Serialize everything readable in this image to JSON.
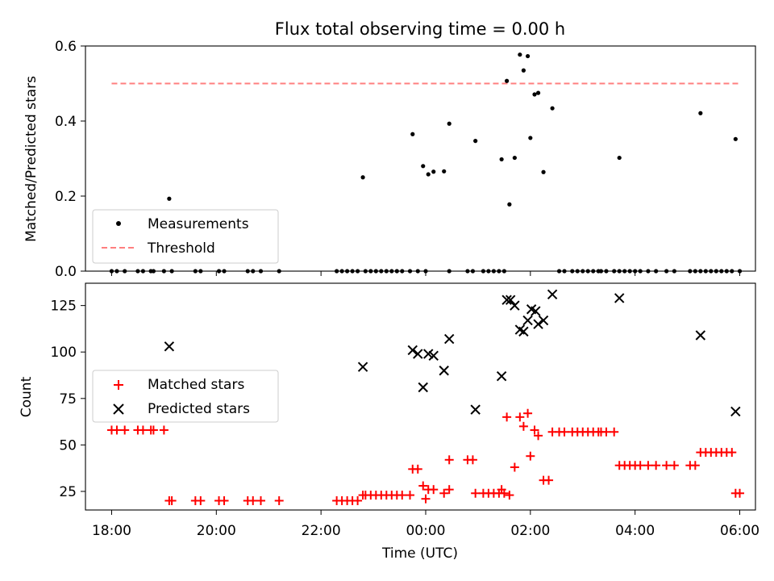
{
  "chart_data": [
    {
      "type": "scatter",
      "title": "Flux total observing time = 0.00 h",
      "xlabel": "",
      "ylabel": "Matched/Predicted stars",
      "xlim": [
        -0.5,
        12.3
      ],
      "ylim": [
        0,
        0.6
      ],
      "yticks": [
        0,
        0.2,
        0.4,
        0.6
      ],
      "ytick_labels": [
        "0.0",
        "0.2",
        "0.4",
        "0.6"
      ],
      "legend": {
        "placement": "lower-left",
        "entries": [
          "Measurements",
          "Threshold"
        ]
      },
      "threshold": {
        "name": "Threshold",
        "y": 0.5,
        "x_start": 0.0,
        "x_end": 12.0,
        "color": "#ff7f7f"
      },
      "series": [
        {
          "name": "Measurements",
          "color": "#000000",
          "points": [
            [
              1.1,
              0.193
            ],
            [
              4.8,
              0.25
            ],
            [
              5.75,
              0.365
            ],
            [
              5.95,
              0.28
            ],
            [
              6.05,
              0.258
            ],
            [
              6.15,
              0.265
            ],
            [
              6.35,
              0.266
            ],
            [
              6.45,
              0.393
            ],
            [
              6.95,
              0.347
            ],
            [
              7.45,
              0.298
            ],
            [
              7.55,
              0.507
            ],
            [
              7.6,
              0.178
            ],
            [
              7.7,
              0.302
            ],
            [
              7.8,
              0.577
            ],
            [
              7.87,
              0.535
            ],
            [
              7.95,
              0.573
            ],
            [
              8.0,
              0.355
            ],
            [
              8.08,
              0.471
            ],
            [
              8.15,
              0.475
            ],
            [
              8.25,
              0.264
            ],
            [
              8.42,
              0.434
            ],
            [
              9.7,
              0.302
            ],
            [
              11.25,
              0.421
            ],
            [
              11.92,
              0.352
            ],
            [
              0.0,
              0
            ],
            [
              0.1,
              0
            ],
            [
              0.25,
              0
            ],
            [
              0.5,
              0
            ],
            [
              0.6,
              0
            ],
            [
              0.75,
              0
            ],
            [
              0.8,
              0
            ],
            [
              1.0,
              0
            ],
            [
              1.15,
              0
            ],
            [
              1.6,
              0
            ],
            [
              1.7,
              0
            ],
            [
              2.05,
              0
            ],
            [
              2.15,
              0
            ],
            [
              2.6,
              0
            ],
            [
              2.7,
              0
            ],
            [
              2.85,
              0
            ],
            [
              3.2,
              0
            ],
            [
              4.3,
              0
            ],
            [
              4.4,
              0
            ],
            [
              4.5,
              0
            ],
            [
              4.6,
              0
            ],
            [
              4.7,
              0
            ],
            [
              4.85,
              0
            ],
            [
              4.95,
              0
            ],
            [
              5.05,
              0
            ],
            [
              5.15,
              0
            ],
            [
              5.25,
              0
            ],
            [
              5.35,
              0
            ],
            [
              5.45,
              0
            ],
            [
              5.55,
              0
            ],
            [
              5.7,
              0
            ],
            [
              5.85,
              0
            ],
            [
              6.0,
              0
            ],
            [
              6.45,
              0
            ],
            [
              6.8,
              0
            ],
            [
              6.9,
              0
            ],
            [
              7.1,
              0
            ],
            [
              7.2,
              0
            ],
            [
              7.3,
              0
            ],
            [
              7.4,
              0
            ],
            [
              7.5,
              0
            ],
            [
              8.55,
              0
            ],
            [
              8.65,
              0
            ],
            [
              8.8,
              0
            ],
            [
              8.9,
              0
            ],
            [
              9.0,
              0
            ],
            [
              9.1,
              0
            ],
            [
              9.2,
              0
            ],
            [
              9.3,
              0
            ],
            [
              9.35,
              0
            ],
            [
              9.45,
              0
            ],
            [
              9.6,
              0
            ],
            [
              9.7,
              0
            ],
            [
              9.8,
              0
            ],
            [
              9.9,
              0
            ],
            [
              10.0,
              0
            ],
            [
              10.1,
              0
            ],
            [
              10.25,
              0
            ],
            [
              10.4,
              0
            ],
            [
              10.6,
              0
            ],
            [
              10.75,
              0
            ],
            [
              11.05,
              0
            ],
            [
              11.15,
              0
            ],
            [
              11.25,
              0
            ],
            [
              11.35,
              0
            ],
            [
              11.45,
              0
            ],
            [
              11.55,
              0
            ],
            [
              11.65,
              0
            ],
            [
              11.75,
              0
            ],
            [
              11.85,
              0
            ],
            [
              12.0,
              0
            ]
          ]
        }
      ]
    },
    {
      "type": "scatter",
      "title": "",
      "xlabel": "Time (UTC)",
      "ylabel": "Count",
      "xlim": [
        -0.5,
        12.3
      ],
      "ylim": [
        15,
        137
      ],
      "yticks": [
        25,
        50,
        75,
        100,
        125
      ],
      "ytick_labels": [
        "25",
        "50",
        "75",
        "100",
        "125"
      ],
      "xticks": [
        0,
        2,
        4,
        6,
        8,
        10,
        12
      ],
      "xtick_labels": [
        "18:00",
        "20:00",
        "22:00",
        "00:00",
        "02:00",
        "04:00",
        "06:00"
      ],
      "legend": {
        "placement": "center-left",
        "entries": [
          "Matched stars",
          "Predicted stars"
        ]
      },
      "series": [
        {
          "name": "Matched stars",
          "marker": "plus",
          "color": "#ff0000",
          "points": [
            [
              0.0,
              58
            ],
            [
              0.1,
              58
            ],
            [
              0.25,
              58
            ],
            [
              0.5,
              58
            ],
            [
              0.6,
              58
            ],
            [
              0.75,
              58
            ],
            [
              0.8,
              58
            ],
            [
              1.0,
              58
            ],
            [
              1.1,
              20
            ],
            [
              1.15,
              20
            ],
            [
              1.6,
              20
            ],
            [
              1.7,
              20
            ],
            [
              2.05,
              20
            ],
            [
              2.15,
              20
            ],
            [
              2.6,
              20
            ],
            [
              2.7,
              20
            ],
            [
              2.85,
              20
            ],
            [
              3.2,
              20
            ],
            [
              4.3,
              20
            ],
            [
              4.4,
              20
            ],
            [
              4.5,
              20
            ],
            [
              4.6,
              20
            ],
            [
              4.7,
              20
            ],
            [
              4.8,
              23
            ],
            [
              4.85,
              23
            ],
            [
              4.95,
              23
            ],
            [
              5.05,
              23
            ],
            [
              5.15,
              23
            ],
            [
              5.25,
              23
            ],
            [
              5.35,
              23
            ],
            [
              5.45,
              23
            ],
            [
              5.55,
              23
            ],
            [
              5.7,
              23
            ],
            [
              5.75,
              37
            ],
            [
              5.85,
              37
            ],
            [
              5.95,
              28
            ],
            [
              6.0,
              21
            ],
            [
              6.05,
              26
            ],
            [
              6.15,
              26
            ],
            [
              6.35,
              24
            ],
            [
              6.45,
              42
            ],
            [
              6.45,
              26
            ],
            [
              6.8,
              42
            ],
            [
              6.9,
              42
            ],
            [
              6.95,
              24
            ],
            [
              7.1,
              24
            ],
            [
              7.2,
              24
            ],
            [
              7.3,
              24
            ],
            [
              7.4,
              24
            ],
            [
              7.45,
              26
            ],
            [
              7.5,
              24
            ],
            [
              7.55,
              65
            ],
            [
              7.6,
              23
            ],
            [
              7.7,
              38
            ],
            [
              7.8,
              65
            ],
            [
              7.87,
              60
            ],
            [
              7.95,
              67
            ],
            [
              8.0,
              44
            ],
            [
              8.08,
              58
            ],
            [
              8.15,
              55
            ],
            [
              8.25,
              31
            ],
            [
              8.35,
              31
            ],
            [
              8.42,
              57
            ],
            [
              8.55,
              57
            ],
            [
              8.65,
              57
            ],
            [
              8.8,
              57
            ],
            [
              8.9,
              57
            ],
            [
              9.0,
              57
            ],
            [
              9.1,
              57
            ],
            [
              9.2,
              57
            ],
            [
              9.3,
              57
            ],
            [
              9.35,
              57
            ],
            [
              9.45,
              57
            ],
            [
              9.6,
              57
            ],
            [
              9.7,
              39
            ],
            [
              9.8,
              39
            ],
            [
              9.9,
              39
            ],
            [
              10.0,
              39
            ],
            [
              10.1,
              39
            ],
            [
              10.25,
              39
            ],
            [
              10.4,
              39
            ],
            [
              10.6,
              39
            ],
            [
              10.75,
              39
            ],
            [
              11.05,
              39
            ],
            [
              11.15,
              39
            ],
            [
              11.25,
              46
            ],
            [
              11.35,
              46
            ],
            [
              11.45,
              46
            ],
            [
              11.55,
              46
            ],
            [
              11.65,
              46
            ],
            [
              11.75,
              46
            ],
            [
              11.85,
              46
            ],
            [
              11.92,
              24
            ],
            [
              12.0,
              24
            ]
          ]
        },
        {
          "name": "Predicted stars",
          "marker": "x",
          "color": "#000000",
          "points": [
            [
              1.1,
              103
            ],
            [
              4.8,
              92
            ],
            [
              5.75,
              101
            ],
            [
              5.85,
              99
            ],
            [
              5.95,
              81
            ],
            [
              6.05,
              99
            ],
            [
              6.15,
              98
            ],
            [
              6.35,
              90
            ],
            [
              6.45,
              107
            ],
            [
              6.95,
              69
            ],
            [
              7.45,
              87
            ],
            [
              7.55,
              128
            ],
            [
              7.62,
              128
            ],
            [
              7.7,
              125
            ],
            [
              7.8,
              112
            ],
            [
              7.87,
              111
            ],
            [
              7.95,
              117
            ],
            [
              8.02,
              123
            ],
            [
              8.1,
              122
            ],
            [
              8.15,
              115
            ],
            [
              8.25,
              117
            ],
            [
              8.42,
              131
            ],
            [
              9.7,
              129
            ],
            [
              11.25,
              109
            ],
            [
              11.92,
              68
            ]
          ]
        }
      ]
    }
  ]
}
